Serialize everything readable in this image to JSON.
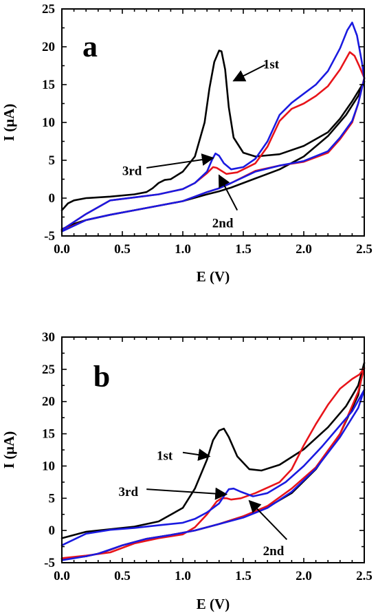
{
  "chart_data": [
    {
      "type": "line",
      "panel_label": "a",
      "xlabel": "E (V)",
      "ylabel": "I (μA)",
      "xlim": [
        0.0,
        2.5
      ],
      "ylim": [
        -5,
        25
      ],
      "x_ticks": [
        0.0,
        0.5,
        1.0,
        1.5,
        2.0,
        2.5
      ],
      "x_tick_labels": [
        "0.0",
        "0.5",
        "1.0",
        "1.5",
        "2.0",
        "2.5"
      ],
      "y_ticks": [
        -5,
        0,
        5,
        10,
        15,
        20,
        25
      ],
      "y_tick_labels": [
        "-5",
        "0",
        "5",
        "10",
        "15",
        "20",
        "25"
      ],
      "grid": false,
      "series": [
        {
          "color": "#000000",
          "x": [
            0.0,
            0.05,
            0.1,
            0.2,
            0.4,
            0.6,
            0.7,
            0.75,
            0.8,
            0.85,
            0.9,
            1.0,
            1.1,
            1.18,
            1.22,
            1.26,
            1.3,
            1.32,
            1.35,
            1.38,
            1.42,
            1.5,
            1.6,
            1.8,
            2.0,
            2.2,
            2.3,
            2.4,
            2.5,
            2.45,
            2.35,
            2.2,
            2.0,
            1.8,
            1.6,
            1.4,
            1.3,
            1.2,
            1.0,
            0.8,
            0.6,
            0.4,
            0.2,
            0.1,
            0.0
          ],
          "y": [
            -1.6,
            -0.7,
            -0.3,
            0.0,
            0.2,
            0.5,
            0.8,
            1.3,
            2.0,
            2.4,
            2.5,
            3.5,
            5.5,
            10.0,
            14.5,
            18.0,
            19.5,
            19.4,
            17.0,
            12.0,
            8.0,
            6.0,
            5.5,
            5.8,
            6.9,
            8.7,
            10.5,
            12.8,
            15.4,
            13.5,
            11.0,
            8.2,
            5.5,
            3.8,
            2.6,
            1.4,
            0.9,
            0.5,
            -0.4,
            -1.0,
            -1.6,
            -2.2,
            -2.9,
            -3.4,
            -4.1
          ]
        },
        {
          "color": "#e8141a",
          "x": [
            0.0,
            0.2,
            0.4,
            0.6,
            0.8,
            1.0,
            1.1,
            1.2,
            1.25,
            1.28,
            1.32,
            1.36,
            1.45,
            1.6,
            1.7,
            1.8,
            1.9,
            2.0,
            2.1,
            2.2,
            2.3,
            2.38,
            2.42,
            2.46,
            2.5,
            2.45,
            2.4,
            2.3,
            2.2,
            2.0,
            1.8,
            1.6,
            1.4,
            1.3,
            1.2,
            1.0,
            0.8,
            0.6,
            0.4,
            0.2,
            0.0
          ],
          "y": [
            -4.2,
            -2.1,
            -0.3,
            0.1,
            0.5,
            1.2,
            2.0,
            3.3,
            4.1,
            4.0,
            3.6,
            3.2,
            3.4,
            4.6,
            6.8,
            10.2,
            11.8,
            12.5,
            13.5,
            14.8,
            17.0,
            19.3,
            18.8,
            17.4,
            15.9,
            12.5,
            10.0,
            7.8,
            6.0,
            4.8,
            4.3,
            3.6,
            2.0,
            1.3,
            0.8,
            -0.4,
            -1.0,
            -1.6,
            -2.2,
            -2.9,
            -4.3
          ]
        },
        {
          "color": "#1a1ae0",
          "x": [
            0.0,
            0.2,
            0.4,
            0.6,
            0.8,
            1.0,
            1.1,
            1.2,
            1.24,
            1.27,
            1.3,
            1.34,
            1.4,
            1.5,
            1.6,
            1.7,
            1.8,
            1.9,
            2.0,
            2.1,
            2.2,
            2.3,
            2.36,
            2.4,
            2.44,
            2.48,
            2.5,
            2.45,
            2.4,
            2.3,
            2.2,
            2.0,
            1.8,
            1.6,
            1.4,
            1.3,
            1.2,
            1.0,
            0.8,
            0.6,
            0.4,
            0.2,
            0.0
          ],
          "y": [
            -4.2,
            -2.1,
            -0.3,
            0.1,
            0.5,
            1.2,
            2.0,
            3.5,
            5.0,
            5.9,
            5.6,
            4.6,
            3.8,
            4.1,
            5.2,
            7.5,
            11.0,
            12.6,
            13.8,
            15.0,
            16.8,
            19.8,
            22.2,
            23.2,
            21.5,
            18.0,
            15.8,
            12.5,
            10.2,
            8.0,
            6.2,
            4.9,
            4.3,
            3.5,
            2.0,
            1.3,
            0.8,
            -0.4,
            -1.0,
            -1.6,
            -2.2,
            -2.9,
            -4.4
          ]
        }
      ],
      "annotations": [
        {
          "text": "1st",
          "x": 1.73,
          "y": 17.7,
          "arrow_from": [
            1.68,
            17.6
          ],
          "arrow_to": [
            1.42,
            15.5
          ]
        },
        {
          "text": "3rd",
          "x": 0.58,
          "y": 3.6,
          "arrow_from": [
            0.7,
            4.0
          ],
          "arrow_to": [
            1.25,
            5.3
          ]
        },
        {
          "text": "2nd",
          "x": 1.33,
          "y": -3.3,
          "arrow_from": [
            1.45,
            -1.6
          ],
          "arrow_to": [
            1.3,
            3.0
          ]
        }
      ]
    },
    {
      "type": "line",
      "panel_label": "b",
      "xlabel": "E (V)",
      "ylabel": "I (μA)",
      "xlim": [
        0.0,
        2.5
      ],
      "ylim": [
        -5,
        30
      ],
      "x_ticks": [
        0.0,
        0.5,
        1.0,
        1.5,
        2.0,
        2.5
      ],
      "x_tick_labels": [
        "0.0",
        "0.5",
        "1.0",
        "1.5",
        "2.0",
        "2.5"
      ],
      "y_ticks": [
        -5,
        0,
        5,
        10,
        15,
        20,
        25,
        30
      ],
      "y_tick_labels": [
        "-5",
        "0",
        "5",
        "10",
        "15",
        "20",
        "25",
        "30"
      ],
      "grid": false,
      "series": [
        {
          "color": "#000000",
          "x": [
            0.0,
            0.2,
            0.4,
            0.6,
            0.8,
            1.0,
            1.1,
            1.2,
            1.25,
            1.3,
            1.34,
            1.38,
            1.45,
            1.55,
            1.65,
            1.8,
            2.0,
            2.2,
            2.35,
            2.45,
            2.5,
            2.45,
            2.3,
            2.1,
            1.9,
            1.7,
            1.5,
            1.3,
            1.1,
            0.9,
            0.7,
            0.5,
            0.4,
            0.3,
            0.2,
            0.0
          ],
          "y": [
            -1.2,
            -0.2,
            0.2,
            0.6,
            1.4,
            3.5,
            6.5,
            11.0,
            14.0,
            15.5,
            15.8,
            14.5,
            11.5,
            9.5,
            9.3,
            10.2,
            12.6,
            16.0,
            19.3,
            22.5,
            26.0,
            21.0,
            15.0,
            9.5,
            5.8,
            3.6,
            2.2,
            1.0,
            0.0,
            -0.7,
            -1.3,
            -2.3,
            -3.0,
            -3.6,
            -4.0,
            -4.4
          ]
        },
        {
          "color": "#e8141a",
          "x": [
            0.0,
            0.2,
            0.4,
            0.6,
            0.8,
            1.0,
            1.1,
            1.2,
            1.28,
            1.32,
            1.36,
            1.4,
            1.48,
            1.6,
            1.8,
            1.9,
            2.0,
            2.1,
            2.2,
            2.3,
            2.4,
            2.46,
            2.5,
            2.45,
            2.3,
            2.1,
            1.9,
            1.7,
            1.5,
            1.3,
            1.1,
            0.9,
            0.7,
            0.5,
            0.4,
            0.3,
            0.2,
            0.0
          ],
          "y": [
            -4.3,
            -3.9,
            -3.4,
            -2.0,
            -1.2,
            -0.6,
            0.5,
            2.5,
            4.5,
            5.0,
            5.0,
            4.8,
            5.0,
            5.8,
            7.5,
            9.5,
            13.2,
            16.5,
            19.5,
            22.0,
            23.5,
            24.2,
            25.2,
            21.5,
            15.0,
            9.8,
            6.5,
            3.8,
            2.2,
            1.0,
            0.0,
            -0.7,
            -1.3,
            -2.3,
            -3.0,
            -3.6,
            -4.0,
            -4.4
          ]
        },
        {
          "color": "#1a1ae0",
          "x": [
            0.0,
            0.2,
            0.4,
            0.6,
            0.8,
            1.0,
            1.1,
            1.2,
            1.3,
            1.35,
            1.38,
            1.42,
            1.48,
            1.58,
            1.7,
            1.85,
            2.0,
            2.15,
            2.3,
            2.4,
            2.5,
            2.45,
            2.3,
            2.1,
            1.9,
            1.7,
            1.5,
            1.3,
            1.1,
            0.9,
            0.7,
            0.5,
            0.3,
            0.2,
            0.0
          ],
          "y": [
            -2.3,
            -0.5,
            0.1,
            0.4,
            0.8,
            1.2,
            1.8,
            2.8,
            4.2,
            5.6,
            6.4,
            6.5,
            6.0,
            5.3,
            5.8,
            7.5,
            10.0,
            13.0,
            16.3,
            18.5,
            21.8,
            19.0,
            14.5,
            9.6,
            6.0,
            3.5,
            2.0,
            1.0,
            0.0,
            -0.7,
            -1.3,
            -2.3,
            -3.6,
            -4.0,
            -4.6
          ]
        }
      ],
      "annotations": [
        {
          "text": "1st",
          "x": 0.85,
          "y": 11.6,
          "arrow_from": [
            1.0,
            12.1
          ],
          "arrow_to": [
            1.22,
            11.5
          ]
        },
        {
          "text": "3rd",
          "x": 0.55,
          "y": 6.0,
          "arrow_from": [
            0.7,
            6.4
          ],
          "arrow_to": [
            1.36,
            5.6
          ]
        },
        {
          "text": "2nd",
          "x": 1.75,
          "y": -3.2,
          "arrow_from": [
            1.86,
            -1.4
          ],
          "arrow_to": [
            1.55,
            4.6
          ]
        }
      ]
    }
  ]
}
